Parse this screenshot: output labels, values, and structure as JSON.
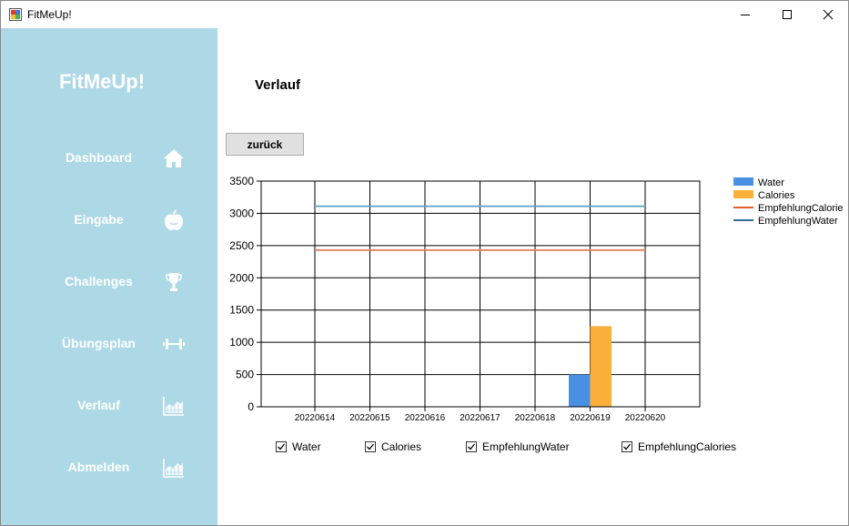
{
  "window": {
    "title": "FitMeUp!",
    "minimize_icon": "minimize-icon",
    "maximize_icon": "maximize-icon",
    "close_icon": "close-icon"
  },
  "sidebar": {
    "brand": "FitMeUp!",
    "background": "#add8e6",
    "items": [
      {
        "label": "Dashboard",
        "icon": "home-icon"
      },
      {
        "label": "Eingabe",
        "icon": "apple-icon"
      },
      {
        "label": "Challenges",
        "icon": "trophy-icon"
      },
      {
        "label": "Übungsplan",
        "icon": "dumbbell-icon"
      },
      {
        "label": "Verlauf",
        "icon": "chart-icon"
      },
      {
        "label": "Abmelden",
        "icon": "chart-icon"
      }
    ]
  },
  "main": {
    "heading": "Verlauf",
    "back_button": "zurück"
  },
  "chart_data": {
    "type": "bar",
    "categories": [
      "20220614",
      "20220615",
      "20220616",
      "20220617",
      "20220618",
      "20220619",
      "20220620"
    ],
    "ylim": [
      0,
      3500
    ],
    "yticks": [
      "0",
      "500",
      "1000",
      "1500",
      "2000",
      "2500",
      "3000",
      "3500"
    ],
    "grid": true,
    "legend_position": "right",
    "series": [
      {
        "name": "Water",
        "kind": "bar",
        "color": "#4a90e2",
        "values": [
          0,
          0,
          0,
          0,
          0,
          500,
          0
        ]
      },
      {
        "name": "Calories",
        "kind": "bar",
        "color": "#fbb03b",
        "values": [
          0,
          0,
          0,
          0,
          0,
          1250,
          0
        ]
      },
      {
        "name": "EmpfehlungCalories",
        "kind": "line",
        "color": "#e0805a",
        "values": [
          2430,
          2430,
          2430,
          2430,
          2430,
          2430,
          2430
        ]
      },
      {
        "name": "EmpfehlungWater",
        "kind": "line",
        "color": "#5b9fc4",
        "values": [
          3110,
          3110,
          3110,
          3110,
          3110,
          3110,
          3110
        ]
      }
    ],
    "legend": [
      {
        "label": "Water",
        "swatch": "box",
        "color": "#4a90e2"
      },
      {
        "label": "Calories",
        "swatch": "box",
        "color": "#fbb03b"
      },
      {
        "label": "EmpfehlungCalories",
        "swatch": "line",
        "color": "#e0622d"
      },
      {
        "label": "EmpfehlungWater",
        "swatch": "line",
        "color": "#2e6f97"
      }
    ]
  },
  "filters": [
    {
      "label": "Water",
      "checked": true
    },
    {
      "label": "Calories",
      "checked": true
    },
    {
      "label": "EmpfehlungWater",
      "checked": true
    },
    {
      "label": "EmpfehlungCalories",
      "checked": true
    }
  ]
}
